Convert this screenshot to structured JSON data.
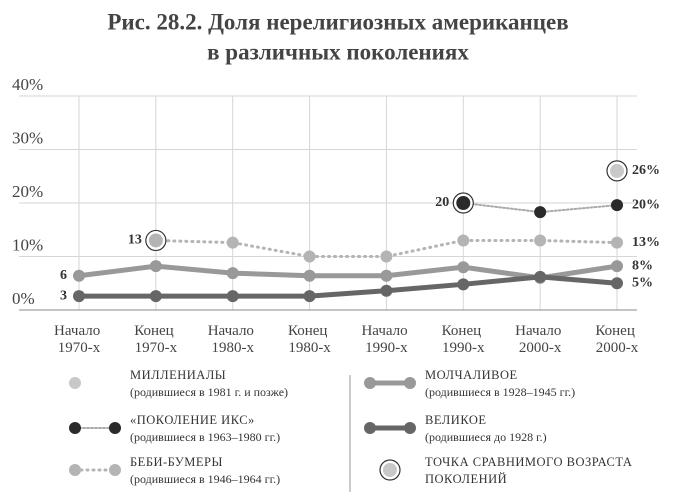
{
  "chart_data": {
    "type": "line",
    "title": [
      "Рис. 28.2. Доля нерелигиозных американцев",
      "в различных поколениях"
    ],
    "categories": [
      "Начало 1970-х",
      "Конец 1970-х",
      "Начало 1980-х",
      "Конец 1980-х",
      "Начало 1990-х",
      "Конец 1990-х",
      "Начало 2000-х",
      "Конец 2000-х"
    ],
    "ylim": [
      0,
      40
    ],
    "yticks": [
      {
        "value": 0,
        "label": "0%"
      },
      {
        "value": 10,
        "label": "10%"
      },
      {
        "value": 20,
        "label": "20%"
      },
      {
        "value": 30,
        "label": "30%"
      },
      {
        "value": 40,
        "label": "40%"
      }
    ],
    "grid": true,
    "highlight_label": "ТОЧКА СРАВНИМОГО ВОЗРАСТА ПОКОЛЕНИЙ",
    "series": [
      {
        "name": "МИЛЛЕНИАЛЫ",
        "birth": "(родившиеся в 1981 г. и позже)",
        "color": "#c8c8c8",
        "line": "none",
        "values": [
          null,
          null,
          null,
          null,
          null,
          null,
          null,
          26
        ],
        "value_labels": [
          null,
          null,
          null,
          null,
          null,
          null,
          null,
          "26%"
        ],
        "highlight_index": 7
      },
      {
        "name": "«ПОКОЛЕНИЕ ИКС»",
        "birth": "(родившиеся в 1963–1980 гг.)",
        "color": "#2a2a2a",
        "line": "zigzag",
        "values": [
          null,
          null,
          null,
          null,
          null,
          20,
          18.3,
          19.6
        ],
        "value_labels": [
          null,
          null,
          null,
          null,
          null,
          "20",
          null,
          "20%"
        ],
        "highlight_index": 5
      },
      {
        "name": "БЕБИ-БУМЕРЫ",
        "birth": "(родившиеся в 1946–1964 гг.)",
        "color": "#b4b4b4",
        "line": "dotted",
        "values": [
          null,
          13,
          12.6,
          10,
          10,
          13,
          13,
          12.6
        ],
        "value_labels": [
          null,
          "13",
          null,
          null,
          null,
          null,
          null,
          "13%"
        ],
        "highlight_index": 1
      },
      {
        "name": "МОЛЧАЛИВОЕ",
        "birth": "(родившиеся в 1928–1945 гг.)",
        "color": "#999999",
        "line": "solid",
        "values": [
          6.4,
          8.2,
          6.9,
          6.4,
          6.4,
          8,
          6,
          8.2
        ],
        "value_labels": [
          "6",
          null,
          null,
          null,
          null,
          null,
          null,
          "8%"
        ]
      },
      {
        "name": "ВЕЛИКОЕ",
        "birth": "(родившиеся до 1928 г.)",
        "color": "#666666",
        "line": "solid",
        "values": [
          2.6,
          2.6,
          2.6,
          2.6,
          3.6,
          4.8,
          6.2,
          5
        ],
        "value_labels": [
          "3",
          null,
          null,
          null,
          null,
          null,
          null,
          "5%"
        ]
      }
    ]
  }
}
